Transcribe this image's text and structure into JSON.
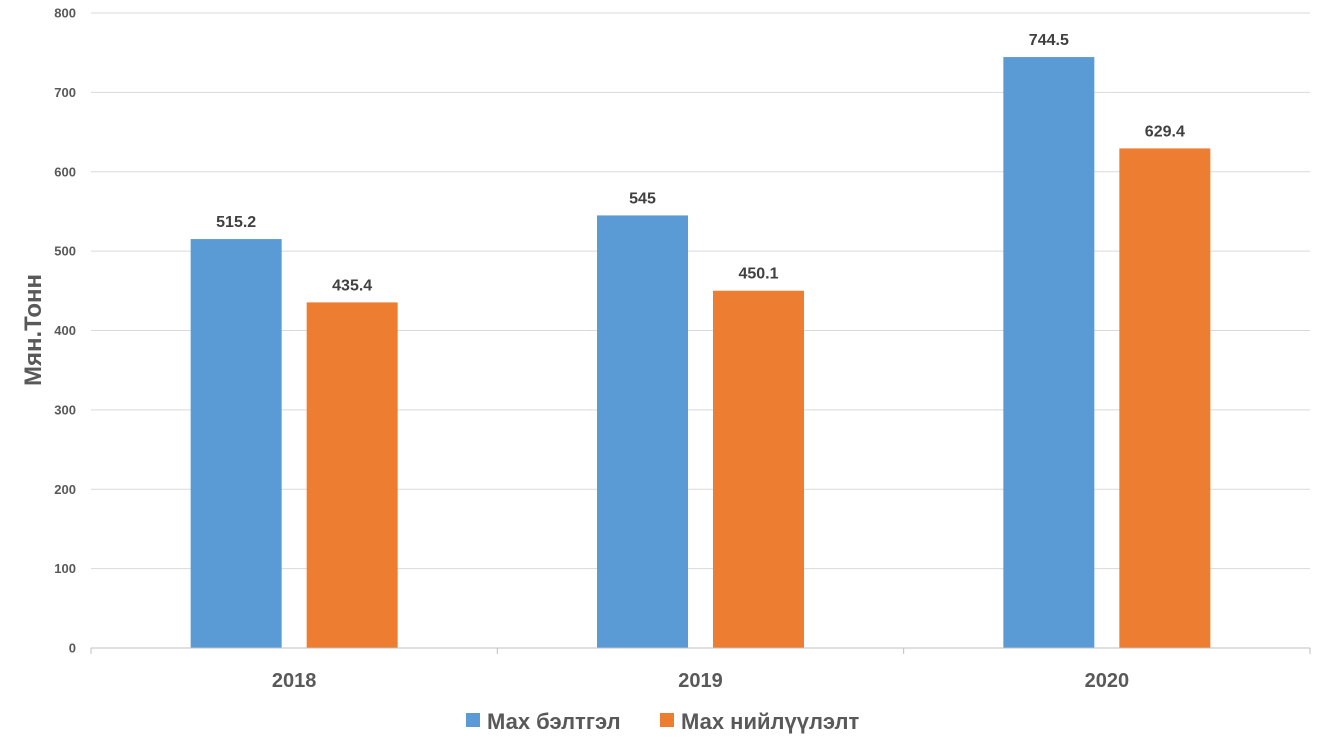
{
  "chart_data": {
    "type": "bar",
    "categories": [
      "2018",
      "2019",
      "2020"
    ],
    "series": [
      {
        "name": "Мах бэлтгэл",
        "values": [
          515.2,
          545,
          744.5
        ],
        "color": "#5B9BD5"
      },
      {
        "name": "Мах нийлүүлэлт",
        "values": [
          435.4,
          450.1,
          629.4
        ],
        "color": "#ED7D31"
      }
    ],
    "data_labels": [
      [
        "515.2",
        "545",
        "744.5"
      ],
      [
        "435.4",
        "450.1",
        "629.4"
      ]
    ],
    "title": "",
    "xlabel": "",
    "ylabel": "Мян.Тонн",
    "ylim": [
      0,
      800
    ],
    "yticks": [
      "0",
      "100",
      "200",
      "300",
      "400",
      "500",
      "600",
      "700",
      "800"
    ],
    "grid": true,
    "legend_position": "bottom"
  }
}
